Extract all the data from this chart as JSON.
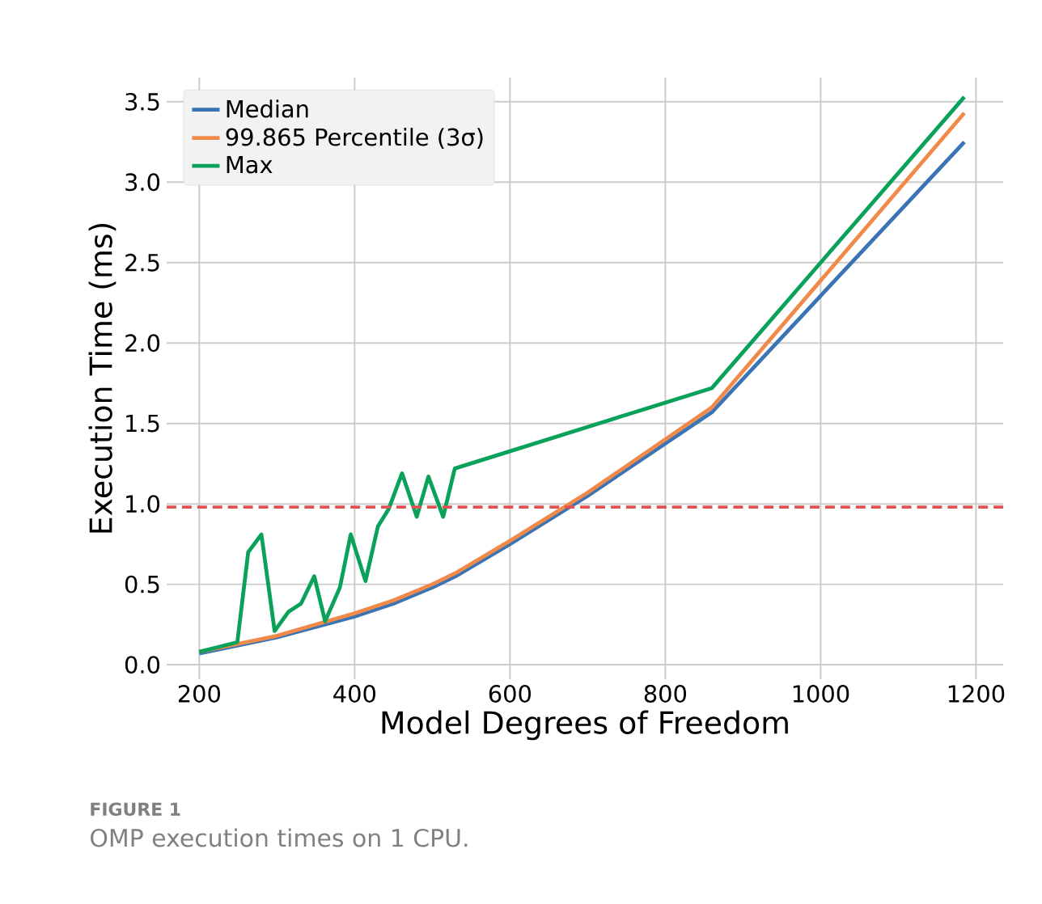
{
  "chart_data": {
    "type": "line",
    "xlabel": "Model Degrees of Freedom",
    "ylabel": "Execution Time (ms)",
    "xlim": [
      158,
      1235
    ],
    "ylim": [
      -0.09,
      3.65
    ],
    "xticks": [
      200,
      400,
      600,
      800,
      1000,
      1200
    ],
    "yticks": [
      {
        "value": 0,
        "label": "0.0"
      },
      0.5,
      {
        "value": 1,
        "label": "1.0"
      },
      1.5,
      {
        "value": 2,
        "label": "2.0"
      },
      2.5,
      {
        "value": 3,
        "label": "3.0"
      },
      3.5
    ],
    "grid": true,
    "legend": "top left",
    "line_style": "solid",
    "marker": "none",
    "series": [
      {
        "name": "Median",
        "color": "#3a74b4",
        "x": [
          200,
          300,
          400,
          450,
          500,
          530,
          600,
          700,
          860,
          1185
        ],
        "values": [
          0.07,
          0.17,
          0.3,
          0.38,
          0.48,
          0.55,
          0.75,
          1.05,
          1.57,
          3.25
        ]
      },
      {
        "name": "99.865 Percentile (3σ)",
        "color": "#f08a4b",
        "x": [
          200,
          300,
          400,
          450,
          500,
          530,
          600,
          700,
          860,
          1185
        ],
        "values": [
          0.08,
          0.18,
          0.32,
          0.4,
          0.5,
          0.57,
          0.77,
          1.07,
          1.6,
          3.43
        ]
      },
      {
        "name": "Max",
        "color": "#0aa25a",
        "x": [
          200,
          249,
          263,
          280,
          297,
          315,
          331,
          348,
          362,
          381,
          395,
          414,
          430,
          444,
          461,
          480,
          495,
          514,
          529,
          860,
          1185
        ],
        "values": [
          0.08,
          0.14,
          0.7,
          0.81,
          0.21,
          0.33,
          0.38,
          0.55,
          0.27,
          0.48,
          0.81,
          0.52,
          0.86,
          0.97,
          1.19,
          0.92,
          1.17,
          0.92,
          1.22,
          1.72,
          3.53
        ]
      }
    ],
    "ref_lines": [
      {
        "axis": "y",
        "value": 0.98,
        "color": "#e05252",
        "line_style": "dashed"
      }
    ],
    "annotations": [
      "**FIGURE 1**",
      "OMP execution times on 1 CPU."
    ]
  }
}
